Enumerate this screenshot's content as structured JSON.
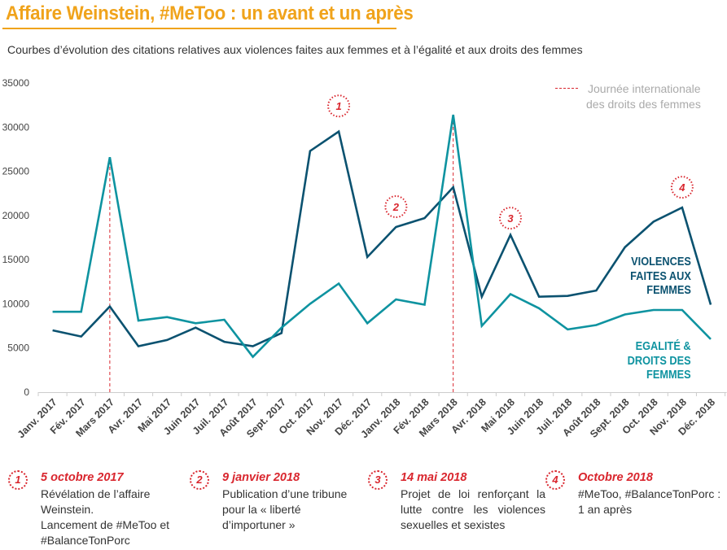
{
  "header": {
    "title": "Affaire Weinstein, #MeToo : un avant et un après",
    "subtitle": "Courbes d’évolution des citations relatives aux violences faites aux femmes et à l’égalité et aux droits des femmes"
  },
  "colors": {
    "accent": "#f0a31b",
    "violences": "#0b5270",
    "egalite": "#0e93a0",
    "marker": "#d9262e"
  },
  "legend": {
    "line1": "Journée internationale",
    "line2": "des droits des femmes"
  },
  "series_labels": {
    "violences": [
      "VIOLENCES",
      "FAITES AUX",
      "FEMMES"
    ],
    "egalite": [
      "EGALITÉ &",
      "DROITS DES",
      "FEMMES"
    ]
  },
  "chart_data": {
    "type": "line",
    "title": "Affaire Weinstein, #MeToo : un avant et un après",
    "xlabel": "",
    "ylabel": "",
    "ylim": [
      0,
      35000
    ],
    "yticks": [
      "0",
      "5000",
      "10000",
      "15000",
      "20000",
      "25000",
      "30000",
      "35000"
    ],
    "grid": false,
    "categories": [
      "Janv. 2017",
      "Fév. 2017",
      "Mars 2017",
      "Avr. 2017",
      "Mai 2017",
      "Juin 2017",
      "Juil. 2017",
      "Août 2017",
      "Sept. 2017",
      "Oct. 2017",
      "Nov. 2017",
      "Déc. 2017",
      "Janv. 2018",
      "Fév. 2018",
      "Mars 2018",
      "Avr. 2018",
      "Mai 2018",
      "Juin 2018",
      "Juil. 2018",
      "Août 2018",
      "Sept. 2018",
      "Oct. 2018",
      "Nov. 2018",
      "Déc. 2018"
    ],
    "series": [
      {
        "name": "VIOLENCES FAITES AUX FEMMES",
        "color": "#0b5270",
        "values": [
          7000,
          6300,
          9700,
          5200,
          5900,
          7300,
          5700,
          5200,
          6700,
          27300,
          29500,
          15300,
          18700,
          19700,
          23200,
          10800,
          17800,
          10800,
          10900,
          11500,
          16400,
          19300,
          20900,
          9900
        ]
      },
      {
        "name": "EGALITÉ & DROITS DES FEMMES",
        "color": "#0e93a0",
        "values": [
          9100,
          9100,
          26600,
          8100,
          8500,
          7800,
          8200,
          4000,
          7300,
          10000,
          12300,
          7800,
          10500,
          9900,
          31400,
          7500,
          11100,
          9500,
          7100,
          7600,
          8800,
          9300,
          9300,
          6000
        ]
      }
    ],
    "vertical_markers": [
      {
        "category": "Mars 2017",
        "label": "Journée internationale des droits des femmes"
      },
      {
        "category": "Mars 2018",
        "label": "Journée internationale des droits des femmes"
      }
    ],
    "annotations": [
      {
        "number": "1",
        "category": "Nov. 2017",
        "value": 32400
      },
      {
        "number": "2",
        "category": "Janv. 2018",
        "value": 21000
      },
      {
        "number": "3",
        "category": "Mai 2018",
        "value": 19700
      },
      {
        "number": "4",
        "category": "Nov. 2018",
        "value": 23200
      }
    ],
    "legend_position": "top-right"
  },
  "notes": [
    {
      "number": "1",
      "date": "5 octobre 2017",
      "lines": [
        "Révélation de l’affaire",
        "Weinstein.",
        "Lancement de #MeToo et",
        "#BalanceTonPorc"
      ]
    },
    {
      "number": "2",
      "date": "9 janvier 2018",
      "lines": [
        "Publication d’une tribune",
        "pour la « liberté",
        "d’importuner »"
      ]
    },
    {
      "number": "3",
      "date": "14 mai 2018",
      "text": "Projet de loi renforçant la lutte contre les violences sexuelles et sexistes"
    },
    {
      "number": "4",
      "date": "Octobre 2018",
      "lines": [
        "#MeToo, #BalanceTonPorc :",
        "1 an après"
      ]
    }
  ]
}
